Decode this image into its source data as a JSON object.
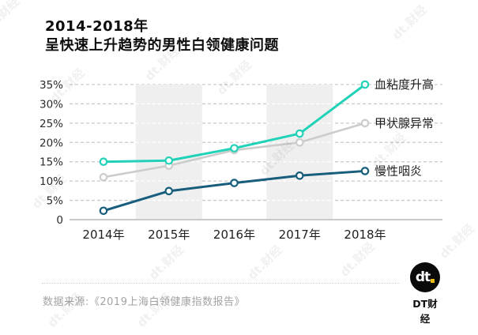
{
  "header": {
    "title_line1": "2014-2018年",
    "title_line2": "呈快速上升趋势的男性白领健康问题"
  },
  "chart_data": {
    "type": "line",
    "title": "2014-2018年呈快速上升趋势的男性白领健康问题",
    "units": "%",
    "categories": [
      "2014年",
      "2015年",
      "2016年",
      "2017年",
      "2018年"
    ],
    "series": [
      {
        "name": "血粘度升高",
        "color": "#22d2b8",
        "values": [
          15,
          15.3,
          18.5,
          22.3,
          35
        ]
      },
      {
        "name": "甲状腺异常",
        "color": "#cccccc",
        "values": [
          11,
          14,
          18,
          20,
          25
        ]
      },
      {
        "name": "慢性咽炎",
        "color": "#175d7c",
        "values": [
          2.3,
          7.4,
          9.5,
          11.4,
          12.6
        ]
      }
    ],
    "y_ticks": [
      "35%",
      "30%",
      "25%",
      "20%",
      "15%",
      "10%",
      "5%",
      "0"
    ],
    "ylim": [
      0,
      35
    ],
    "y_tick_step": 5,
    "xlabel": "",
    "ylabel": "",
    "grid": "horizontal dashed",
    "highlight_bands": [
      "2015年",
      "2017年"
    ],
    "legend_position": "labels right of line endpoints",
    "colors": {
      "grid": "#c9c9c9",
      "axis": "#c9c9c9",
      "band": "#efefef",
      "tick_text": "#2b2b2b",
      "label_text": "#1f1f1f"
    }
  },
  "footer": {
    "source": "数据来源:《2019上海白领健康指数报告》",
    "logo_text": "dt",
    "brand_name": "DT财经"
  },
  "watermark": {
    "text": "dt.财经"
  }
}
